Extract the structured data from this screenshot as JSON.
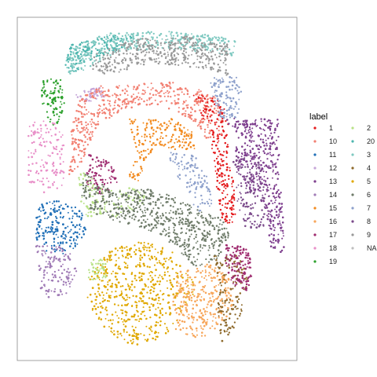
{
  "chart_data": {
    "type": "scatter",
    "title": "",
    "xlabel": "",
    "ylabel": "",
    "axes_visible": false,
    "panel_border": true,
    "legend": {
      "title": "label",
      "placement": "right",
      "columns": 2,
      "entries": [
        {
          "label": "1",
          "color": "#E41A1C"
        },
        {
          "label": "10",
          "color": "#F28072"
        },
        {
          "label": "11",
          "color": "#1F6FB7"
        },
        {
          "label": "12",
          "color": "#C5A5D8"
        },
        {
          "label": "13",
          "color": "#7E3F8E"
        },
        {
          "label": "14",
          "color": "#A07BB6"
        },
        {
          "label": "15",
          "color": "#F28A1E"
        },
        {
          "label": "16",
          "color": "#F7A65A"
        },
        {
          "label": "17",
          "color": "#9E2A6E"
        },
        {
          "label": "18",
          "color": "#E88FC8"
        },
        {
          "label": "19",
          "color": "#2CA02C"
        },
        {
          "label": "2",
          "color": "#B8E186"
        },
        {
          "label": "20",
          "color": "#4CB5AE"
        },
        {
          "label": "3",
          "color": "#7FC9C1"
        },
        {
          "label": "4",
          "color": "#8E6A2C"
        },
        {
          "label": "5",
          "color": "#E0A800"
        },
        {
          "label": "6",
          "color": "#6F7C6A"
        },
        {
          "label": "7",
          "color": "#8DA0CB"
        },
        {
          "label": "8",
          "color": "#7A4A8A"
        },
        {
          "label": "9",
          "color": "#999999"
        },
        {
          "label": "NA",
          "color": "#BEBEBE"
        }
      ]
    }
  }
}
